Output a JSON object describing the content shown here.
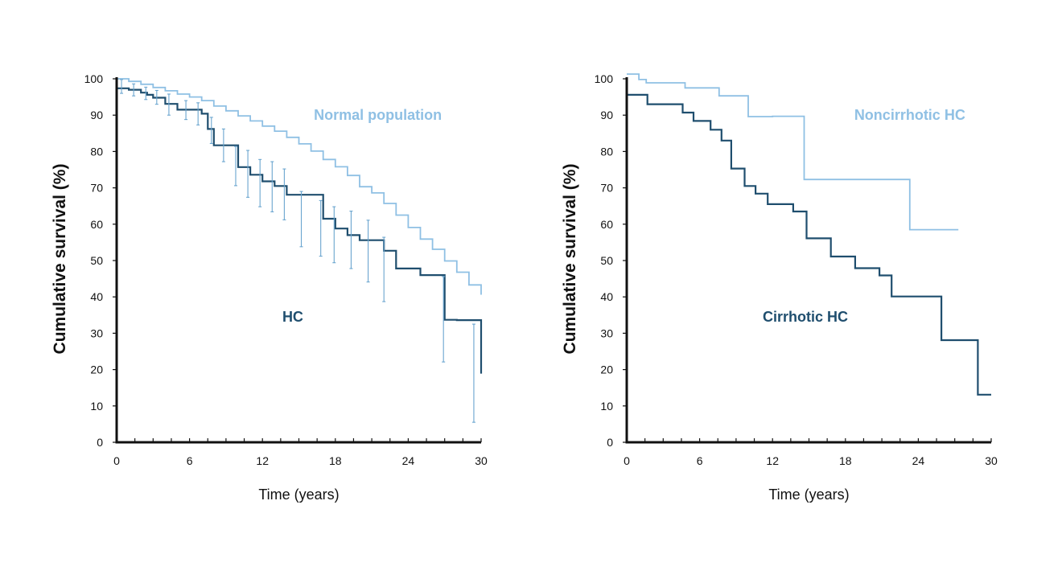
{
  "colors": {
    "dark": "#1f4e6e",
    "light": "#8fc0e4",
    "axis": "#111111",
    "error": "#6aa5cf"
  },
  "chart_data": [
    {
      "type": "line",
      "step": true,
      "xlabel": "Time (years)",
      "ylabel": "Cumulative survival (%)",
      "xlim": [
        0,
        30
      ],
      "ylim": [
        0,
        100
      ],
      "xticks": [
        0,
        6,
        12,
        18,
        24,
        30
      ],
      "yticks": [
        0,
        10,
        20,
        30,
        40,
        50,
        60,
        70,
        80,
        90,
        100
      ],
      "series": [
        {
          "name": "Normal population",
          "color": "#8fc0e4",
          "label_pos": [
            21.5,
            90
          ],
          "x": [
            0,
            1,
            2,
            3,
            4,
            5,
            6,
            7,
            8,
            9,
            10,
            11,
            12,
            13,
            14,
            15,
            16,
            17,
            18,
            19,
            20,
            21,
            22,
            23,
            24,
            25,
            26,
            27,
            28,
            29,
            30
          ],
          "y": [
            100,
            99.3,
            98.5,
            97.6,
            96.7,
            95.8,
            95,
            94,
            92.5,
            91.2,
            89.8,
            88.4,
            87,
            85.6,
            83.9,
            82.1,
            80.1,
            77.8,
            75.8,
            73.4,
            70.3,
            68.6,
            65.7,
            62.5,
            59.1,
            55.9,
            53.1,
            49.9,
            46.8,
            43.3,
            40.6
          ]
        },
        {
          "name": "HC",
          "color": "#1f4e6e",
          "label_pos": [
            14.5,
            34.5
          ],
          "x": [
            0,
            1,
            2,
            2.5,
            3,
            4,
            5,
            6,
            7,
            7.5,
            8,
            9,
            10,
            11,
            12,
            12.5,
            13,
            14,
            17,
            18,
            19,
            20,
            21,
            22,
            23,
            25,
            26,
            27,
            28,
            28.5,
            30
          ],
          "y": [
            97.4,
            97,
            96.2,
            95.6,
            94.8,
            93.1,
            91.5,
            91.5,
            90.4,
            86.2,
            81.7,
            81.7,
            75.7,
            73.6,
            71.8,
            71.8,
            70.5,
            68.1,
            61.5,
            58.8,
            57,
            55.6,
            55.6,
            52.7,
            47.8,
            46,
            46,
            33.7,
            33.6,
            33.6,
            18.9
          ],
          "errors": [
            {
              "x": 0.4,
              "lo": 96,
              "hi": 99.8
            },
            {
              "x": 1.4,
              "lo": 95.3,
              "hi": 98.6
            },
            {
              "x": 2.4,
              "lo": 94.3,
              "hi": 97.7
            },
            {
              "x": 3.3,
              "lo": 93,
              "hi": 96.8
            },
            {
              "x": 4.3,
              "lo": 90,
              "hi": 95.8
            },
            {
              "x": 5.7,
              "lo": 88.8,
              "hi": 94
            },
            {
              "x": 6.7,
              "lo": 87.3,
              "hi": 93.4
            },
            {
              "x": 7.8,
              "lo": 82.2,
              "hi": 89.4
            },
            {
              "x": 8.8,
              "lo": 77.2,
              "hi": 86.2
            },
            {
              "x": 9.8,
              "lo": 70.6,
              "hi": 81.4
            },
            {
              "x": 10.8,
              "lo": 67.4,
              "hi": 80.3
            },
            {
              "x": 11.8,
              "lo": 64.8,
              "hi": 77.8
            },
            {
              "x": 12.8,
              "lo": 63.4,
              "hi": 77.2
            },
            {
              "x": 13.8,
              "lo": 61.2,
              "hi": 75.2
            },
            {
              "x": 15.2,
              "lo": 53.8,
              "hi": 69
            },
            {
              "x": 16.8,
              "lo": 51.2,
              "hi": 66.5
            },
            {
              "x": 17.9,
              "lo": 49.4,
              "hi": 64.8
            },
            {
              "x": 19.3,
              "lo": 47.8,
              "hi": 63.6
            },
            {
              "x": 20.7,
              "lo": 44.1,
              "hi": 61.1
            },
            {
              "x": 22,
              "lo": 38.7,
              "hi": 56.4
            },
            {
              "x": 26.9,
              "lo": 22.1,
              "hi": 45.6
            },
            {
              "x": 29.4,
              "lo": 5.5,
              "hi": 32.5
            }
          ]
        }
      ]
    },
    {
      "type": "line",
      "step": true,
      "xlabel": "Time (years)",
      "ylabel": "Cumulative survival (%)",
      "xlim": [
        0,
        30
      ],
      "ylim": [
        0,
        100
      ],
      "xticks": [
        0,
        6,
        12,
        18,
        24,
        30
      ],
      "yticks": [
        0,
        10,
        20,
        30,
        40,
        50,
        60,
        70,
        80,
        90,
        100
      ],
      "series": [
        {
          "name": "Noncirrhotic HC",
          "color": "#8fc0e4",
          "label_pos": [
            23.3,
            90
          ],
          "x": [
            0,
            0.3,
            1,
            1.6,
            2,
            4.8,
            5,
            7.6,
            8,
            10,
            12,
            14.6,
            15,
            20,
            23.3,
            27.3
          ],
          "y": [
            101.3,
            101.3,
            99.8,
            98.9,
            98.9,
            97.5,
            97.5,
            95.3,
            95.3,
            89.6,
            89.7,
            72.3,
            72.3,
            72.3,
            58.5,
            58.5
          ]
        },
        {
          "name": "Cirrhotic HC",
          "color": "#1f4e6e",
          "label_pos": [
            14.7,
            34.5
          ],
          "x": [
            0,
            1.7,
            3,
            4.6,
            5.5,
            6.9,
            7.8,
            8.6,
            9.7,
            10.6,
            11.6,
            13.7,
            14.8,
            16.8,
            18.8,
            20.8,
            21.8,
            25.9,
            28.9,
            30
          ],
          "y": [
            95.6,
            93,
            93,
            90.7,
            88.4,
            86,
            83,
            75.3,
            70.5,
            68.4,
            65.5,
            63.5,
            56.1,
            51.1,
            47.9,
            45.9,
            40.1,
            28.1,
            13.1,
            13.1
          ]
        }
      ]
    }
  ]
}
